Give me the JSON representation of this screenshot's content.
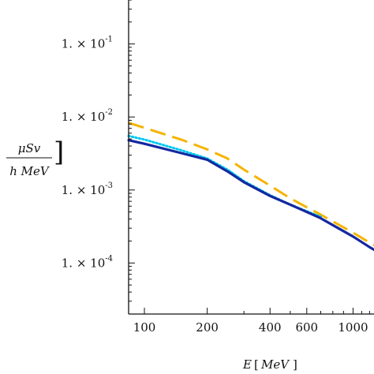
{
  "chart_data": {
    "type": "line",
    "title": "",
    "x_label": {
      "var": "E",
      "unit": "MeV"
    },
    "y_label": {
      "numerator": "μSv",
      "denominator": "h MeV"
    },
    "x_scale": "log",
    "y_scale": "log",
    "xlim": [
      84,
      1260
    ],
    "ylim": [
      2e-05,
      0.4
    ],
    "x_ticks": [
      100,
      200,
      400,
      600,
      1000
    ],
    "x_tick_labels": [
      "100",
      "200",
      "400",
      "600",
      "1000"
    ],
    "y_ticks": [
      0.1,
      0.01,
      0.001,
      0.0001
    ],
    "y_tick_labels": [
      {
        "mantissa": "1. × 10",
        "exponent": "-1"
      },
      {
        "mantissa": "1. × 10",
        "exponent": "-2"
      },
      {
        "mantissa": "1. × 10",
        "exponent": "-3"
      },
      {
        "mantissa": "1. × 10",
        "exponent": "-4"
      }
    ],
    "series": [
      {
        "color": "#f5b400",
        "style": "dashed",
        "x": [
          84,
          100,
          150,
          200,
          250,
          300,
          400,
          500,
          600,
          700,
          800,
          1000,
          1200,
          1260
        ],
        "y": [
          0.0083,
          0.0071,
          0.0049,
          0.0036,
          0.0027,
          0.0019,
          0.00115,
          0.00077,
          0.00058,
          0.00046,
          0.00037,
          0.00026,
          0.00019,
          0.000175
        ]
      },
      {
        "color": "#00c8f0",
        "style": "dotted",
        "x": [
          84,
          100,
          150,
          200,
          250,
          300,
          400,
          500,
          600,
          700
        ],
        "y": [
          0.0055,
          0.0049,
          0.0035,
          0.0027,
          0.0019,
          0.00132,
          0.00085,
          0.00063,
          0.00051,
          0.00043
        ]
      },
      {
        "color": "#1428a0",
        "style": "solid",
        "x": [
          84,
          100,
          150,
          200,
          250,
          300,
          400,
          500,
          600,
          700,
          800,
          1000,
          1200,
          1260
        ],
        "y": [
          0.0048,
          0.0043,
          0.0032,
          0.0026,
          0.0018,
          0.00128,
          0.00083,
          0.00063,
          0.0005,
          0.00041,
          0.00033,
          0.00023,
          0.000165,
          0.000152
        ]
      }
    ]
  }
}
